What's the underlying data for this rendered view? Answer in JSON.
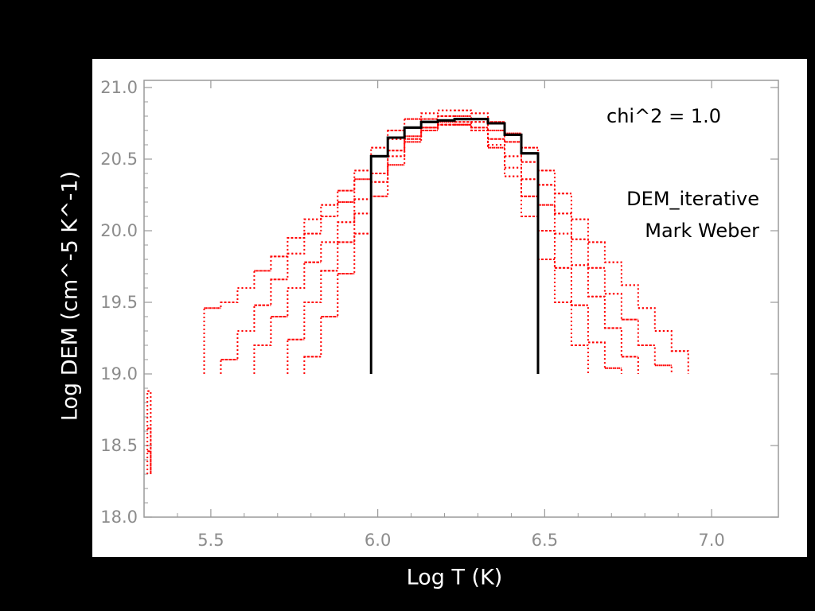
{
  "chart_data": {
    "type": "line",
    "xlabel": "Log T (K)",
    "ylabel": "Log DEM (cm^-5 K^-1)",
    "xlim": [
      5.3,
      7.2
    ],
    "ylim": [
      18.0,
      21.05
    ],
    "x_ticks": [
      "5.5",
      "6.0",
      "6.5",
      "7.0"
    ],
    "y_ticks": [
      "18.0",
      "18.5",
      "19.0",
      "19.5",
      "20.0",
      "20.5",
      "21.0"
    ],
    "grid": false,
    "annotations": [
      "chi^2 = 1.0",
      "DEM_iterative",
      "Mark Weber"
    ],
    "series": [
      {
        "style": "solid",
        "color": "#000000",
        "bins": [
          {
            "x": [
              5.98,
              6.03
            ],
            "y": 20.52
          },
          {
            "x": [
              6.03,
              6.08
            ],
            "y": 20.65
          },
          {
            "x": [
              6.08,
              6.13
            ],
            "y": 20.72
          },
          {
            "x": [
              6.13,
              6.18
            ],
            "y": 20.76
          },
          {
            "x": [
              6.18,
              6.23
            ],
            "y": 20.77
          },
          {
            "x": [
              6.23,
              6.28
            ],
            "y": 20.78
          },
          {
            "x": [
              6.28,
              6.33
            ],
            "y": 20.78
          },
          {
            "x": [
              6.33,
              6.38
            ],
            "y": 20.75
          },
          {
            "x": [
              6.38,
              6.43
            ],
            "y": 20.67
          },
          {
            "x": [
              6.43,
              6.48
            ],
            "y": 20.54
          }
        ],
        "base": 19.0
      },
      {
        "style": "dotted",
        "color": "#ff0000",
        "bins": [
          {
            "x": [
              5.48,
              5.53
            ],
            "y": 19.46
          },
          {
            "x": [
              5.53,
              5.58
            ],
            "y": 19.5
          },
          {
            "x": [
              5.58,
              5.63
            ],
            "y": 19.6
          },
          {
            "x": [
              5.63,
              5.68
            ],
            "y": 19.72
          },
          {
            "x": [
              5.68,
              5.73
            ],
            "y": 19.82
          },
          {
            "x": [
              5.73,
              5.78
            ],
            "y": 19.95
          },
          {
            "x": [
              5.78,
              5.83
            ],
            "y": 20.08
          },
          {
            "x": [
              5.83,
              5.88
            ],
            "y": 20.18
          },
          {
            "x": [
              5.88,
              5.93
            ],
            "y": 20.28
          },
          {
            "x": [
              5.93,
              5.98
            ],
            "y": 20.42
          },
          {
            "x": [
              5.98,
              6.03
            ],
            "y": 20.58
          },
          {
            "x": [
              6.03,
              6.08
            ],
            "y": 20.7
          },
          {
            "x": [
              6.08,
              6.13
            ],
            "y": 20.78
          },
          {
            "x": [
              6.13,
              6.18
            ],
            "y": 20.82
          },
          {
            "x": [
              6.18,
              6.23
            ],
            "y": 20.84
          },
          {
            "x": [
              6.23,
              6.28
            ],
            "y": 20.84
          },
          {
            "x": [
              6.28,
              6.33
            ],
            "y": 20.82
          },
          {
            "x": [
              6.33,
              6.38
            ],
            "y": 20.76
          },
          {
            "x": [
              6.38,
              6.43
            ],
            "y": 20.68
          },
          {
            "x": [
              6.43,
              6.48
            ],
            "y": 20.58
          },
          {
            "x": [
              6.48,
              6.53
            ],
            "y": 20.42
          },
          {
            "x": [
              6.53,
              6.58
            ],
            "y": 20.26
          },
          {
            "x": [
              6.58,
              6.63
            ],
            "y": 20.08
          },
          {
            "x": [
              6.63,
              6.68
            ],
            "y": 19.92
          },
          {
            "x": [
              6.68,
              6.73
            ],
            "y": 19.78
          },
          {
            "x": [
              6.73,
              6.78
            ],
            "y": 19.62
          },
          {
            "x": [
              6.78,
              6.83
            ],
            "y": 19.46
          },
          {
            "x": [
              6.83,
              6.88
            ],
            "y": 19.3
          },
          {
            "x": [
              6.88,
              6.93
            ],
            "y": 19.16
          }
        ],
        "base": 19.0
      },
      {
        "style": "dotted",
        "color": "#ff0000",
        "bins": [
          {
            "x": [
              5.53,
              5.58
            ],
            "y": 19.1
          },
          {
            "x": [
              5.58,
              5.63
            ],
            "y": 19.3
          },
          {
            "x": [
              5.63,
              5.68
            ],
            "y": 19.48
          },
          {
            "x": [
              5.68,
              5.73
            ],
            "y": 19.66
          },
          {
            "x": [
              5.73,
              5.78
            ],
            "y": 19.84
          },
          {
            "x": [
              5.78,
              5.83
            ],
            "y": 19.98
          },
          {
            "x": [
              5.83,
              5.88
            ],
            "y": 20.1
          },
          {
            "x": [
              5.88,
              5.93
            ],
            "y": 20.2
          },
          {
            "x": [
              5.93,
              5.98
            ],
            "y": 20.36
          },
          {
            "x": [
              5.98,
              6.03
            ],
            "y": 20.52
          },
          {
            "x": [
              6.03,
              6.08
            ],
            "y": 20.64
          },
          {
            "x": [
              6.08,
              6.13
            ],
            "y": 20.72
          },
          {
            "x": [
              6.13,
              6.18
            ],
            "y": 20.78
          },
          {
            "x": [
              6.18,
              6.23
            ],
            "y": 20.8
          },
          {
            "x": [
              6.23,
              6.28
            ],
            "y": 20.8
          },
          {
            "x": [
              6.28,
              6.33
            ],
            "y": 20.76
          },
          {
            "x": [
              6.33,
              6.38
            ],
            "y": 20.7
          },
          {
            "x": [
              6.38,
              6.43
            ],
            "y": 20.62
          },
          {
            "x": [
              6.43,
              6.48
            ],
            "y": 20.48
          },
          {
            "x": [
              6.48,
              6.53
            ],
            "y": 20.32
          },
          {
            "x": [
              6.53,
              6.58
            ],
            "y": 20.12
          },
          {
            "x": [
              6.58,
              6.63
            ],
            "y": 19.94
          },
          {
            "x": [
              6.63,
              6.68
            ],
            "y": 19.74
          },
          {
            "x": [
              6.68,
              6.73
            ],
            "y": 19.56
          },
          {
            "x": [
              6.73,
              6.78
            ],
            "y": 19.38
          },
          {
            "x": [
              6.78,
              6.83
            ],
            "y": 19.2
          },
          {
            "x": [
              6.83,
              6.88
            ],
            "y": 19.06
          }
        ],
        "base": 19.0
      },
      {
        "style": "dotted",
        "color": "#ff0000",
        "bins": [
          {
            "x": [
              5.63,
              5.68
            ],
            "y": 19.2
          },
          {
            "x": [
              5.68,
              5.73
            ],
            "y": 19.4
          },
          {
            "x": [
              5.73,
              5.78
            ],
            "y": 19.6
          },
          {
            "x": [
              5.78,
              5.83
            ],
            "y": 19.78
          },
          {
            "x": [
              5.83,
              5.88
            ],
            "y": 19.92
          },
          {
            "x": [
              5.88,
              5.93
            ],
            "y": 20.06
          },
          {
            "x": [
              5.93,
              5.98
            ],
            "y": 20.22
          },
          {
            "x": [
              5.98,
              6.03
            ],
            "y": 20.4
          },
          {
            "x": [
              6.03,
              6.08
            ],
            "y": 20.56
          },
          {
            "x": [
              6.08,
              6.13
            ],
            "y": 20.66
          },
          {
            "x": [
              6.13,
              6.18
            ],
            "y": 20.72
          },
          {
            "x": [
              6.18,
              6.23
            ],
            "y": 20.76
          },
          {
            "x": [
              6.23,
              6.28
            ],
            "y": 20.76
          },
          {
            "x": [
              6.28,
              6.33
            ],
            "y": 20.72
          },
          {
            "x": [
              6.33,
              6.38
            ],
            "y": 20.64
          },
          {
            "x": [
              6.38,
              6.43
            ],
            "y": 20.52
          },
          {
            "x": [
              6.43,
              6.48
            ],
            "y": 20.36
          },
          {
            "x": [
              6.48,
              6.53
            ],
            "y": 20.18
          },
          {
            "x": [
              6.53,
              6.58
            ],
            "y": 19.98
          },
          {
            "x": [
              6.58,
              6.63
            ],
            "y": 19.76
          },
          {
            "x": [
              6.63,
              6.68
            ],
            "y": 19.54
          },
          {
            "x": [
              6.68,
              6.73
            ],
            "y": 19.32
          },
          {
            "x": [
              6.73,
              6.78
            ],
            "y": 19.12
          }
        ],
        "base": 19.0
      },
      {
        "style": "dotted",
        "color": "#ff0000",
        "bins": [
          {
            "x": [
              5.73,
              5.78
            ],
            "y": 19.24
          },
          {
            "x": [
              5.78,
              5.83
            ],
            "y": 19.5
          },
          {
            "x": [
              5.83,
              5.88
            ],
            "y": 19.72
          },
          {
            "x": [
              5.88,
              5.93
            ],
            "y": 19.92
          },
          {
            "x": [
              5.93,
              5.98
            ],
            "y": 20.12
          },
          {
            "x": [
              5.98,
              6.03
            ],
            "y": 20.34
          },
          {
            "x": [
              6.03,
              6.08
            ],
            "y": 20.52
          },
          {
            "x": [
              6.08,
              6.13
            ],
            "y": 20.64
          },
          {
            "x": [
              6.13,
              6.18
            ],
            "y": 20.72
          },
          {
            "x": [
              6.18,
              6.23
            ],
            "y": 20.74
          },
          {
            "x": [
              6.23,
              6.28
            ],
            "y": 20.74
          },
          {
            "x": [
              6.28,
              6.33
            ],
            "y": 20.7
          },
          {
            "x": [
              6.33,
              6.38
            ],
            "y": 20.6
          },
          {
            "x": [
              6.38,
              6.43
            ],
            "y": 20.44
          },
          {
            "x": [
              6.43,
              6.48
            ],
            "y": 20.24
          },
          {
            "x": [
              6.48,
              6.53
            ],
            "y": 20.0
          },
          {
            "x": [
              6.53,
              6.58
            ],
            "y": 19.74
          },
          {
            "x": [
              6.58,
              6.63
            ],
            "y": 19.48
          },
          {
            "x": [
              6.63,
              6.68
            ],
            "y": 19.22
          },
          {
            "x": [
              6.68,
              6.73
            ],
            "y": 19.04
          }
        ],
        "base": 19.0
      },
      {
        "style": "dotted",
        "color": "#ff0000",
        "bins": [
          {
            "x": [
              5.78,
              5.83
            ],
            "y": 19.12
          },
          {
            "x": [
              5.83,
              5.88
            ],
            "y": 19.4
          },
          {
            "x": [
              5.88,
              5.93
            ],
            "y": 19.7
          },
          {
            "x": [
              5.93,
              5.98
            ],
            "y": 19.98
          },
          {
            "x": [
              5.98,
              6.03
            ],
            "y": 20.24
          },
          {
            "x": [
              6.03,
              6.08
            ],
            "y": 20.46
          },
          {
            "x": [
              6.08,
              6.13
            ],
            "y": 20.62
          },
          {
            "x": [
              6.13,
              6.18
            ],
            "y": 20.7
          },
          {
            "x": [
              6.18,
              6.23
            ],
            "y": 20.74
          },
          {
            "x": [
              6.23,
              6.28
            ],
            "y": 20.74
          },
          {
            "x": [
              6.28,
              6.33
            ],
            "y": 20.7
          },
          {
            "x": [
              6.33,
              6.38
            ],
            "y": 20.58
          },
          {
            "x": [
              6.38,
              6.43
            ],
            "y": 20.38
          },
          {
            "x": [
              6.43,
              6.48
            ],
            "y": 20.1
          },
          {
            "x": [
              6.48,
              6.53
            ],
            "y": 19.8
          },
          {
            "x": [
              6.53,
              6.58
            ],
            "y": 19.5
          },
          {
            "x": [
              6.58,
              6.63
            ],
            "y": 19.2
          }
        ],
        "base": 19.0
      },
      {
        "style": "dotted",
        "color": "#ff0000",
        "bins": [
          {
            "x": [
              5.31,
              5.32
            ],
            "y": 18.88
          },
          {
            "x": [
              5.31,
              5.32
            ],
            "y": 18.62
          },
          {
            "x": [
              5.31,
              5.32
            ],
            "y": 18.46
          }
        ],
        "base": 18.3
      }
    ]
  }
}
